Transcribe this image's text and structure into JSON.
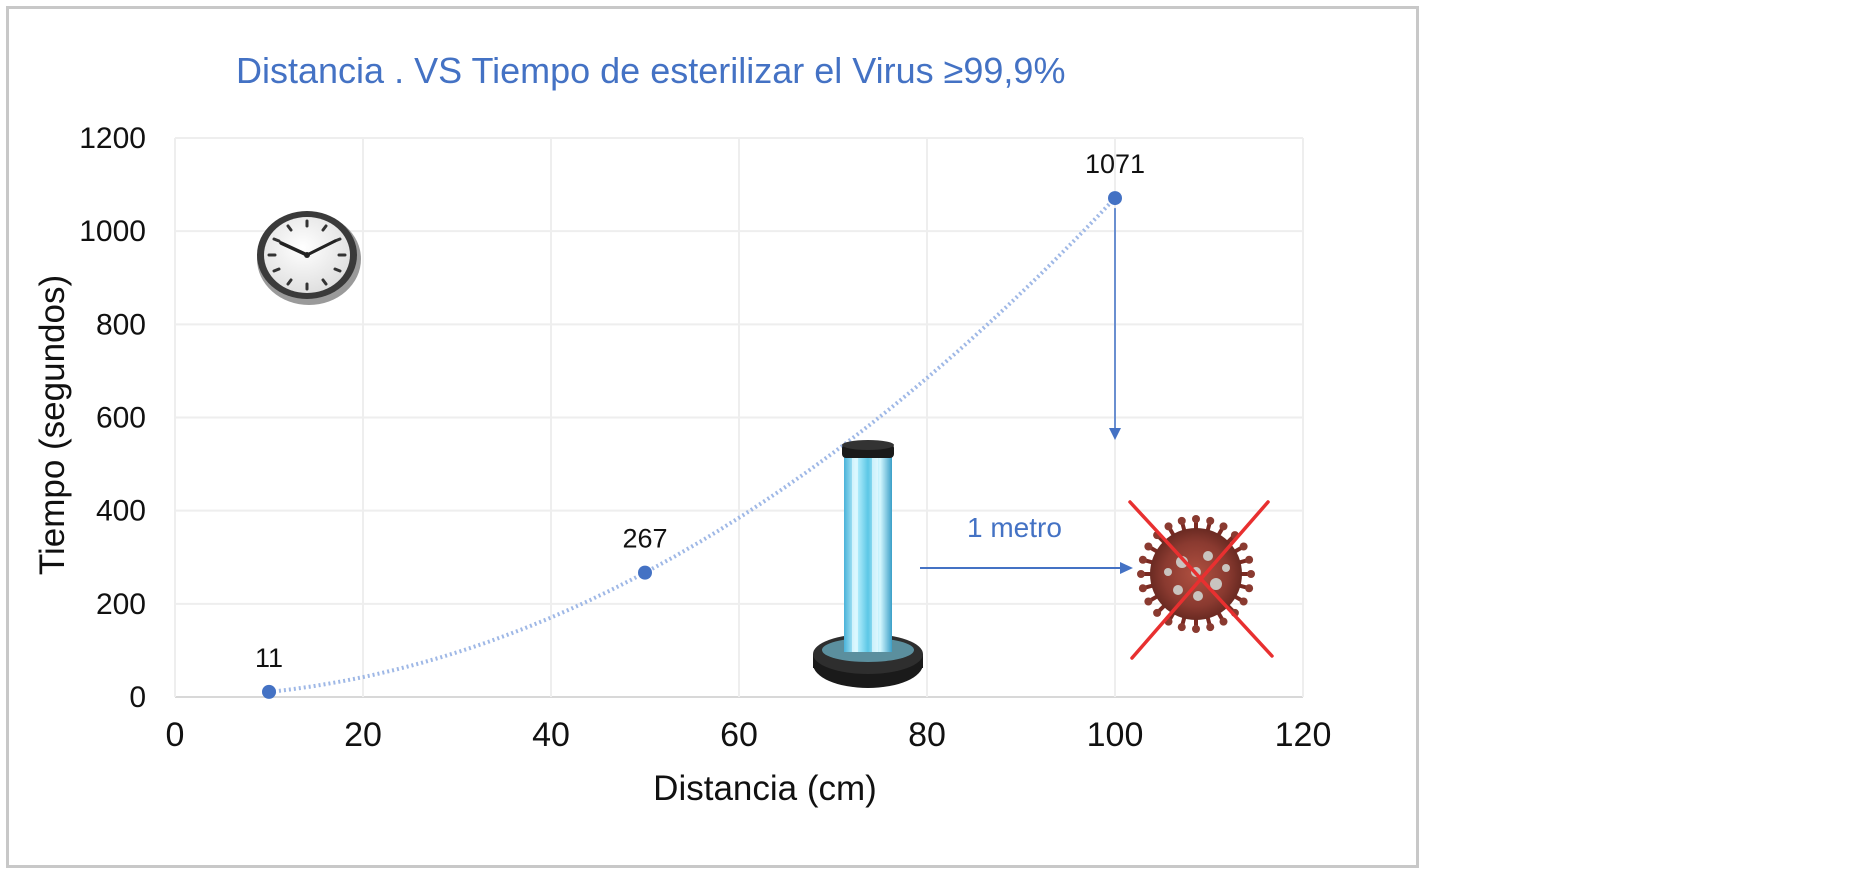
{
  "chart_data": {
    "type": "scatter",
    "title": "Distancia . VS Tiempo de esterilizar el Virus ≥99,9%",
    "xlabel": "Distancia (cm)",
    "ylabel": "Tiempo (segundos)",
    "xlim": [
      0,
      120
    ],
    "ylim": [
      0,
      1200
    ],
    "x_ticks": [
      0,
      20,
      40,
      60,
      80,
      100,
      120
    ],
    "y_ticks": [
      0,
      200,
      400,
      600,
      800,
      1000,
      1200
    ],
    "grid": true,
    "series": [
      {
        "x": [
          10,
          50,
          100
        ],
        "y": [
          11,
          267,
          1071
        ],
        "labels": [
          "11",
          "267",
          "1071"
        ],
        "color": "#4472c4",
        "line_style": "dotted-curve"
      }
    ],
    "annotations": [
      {
        "text": "1 metro",
        "color": "#4472c4"
      }
    ]
  },
  "colors": {
    "accent": "#4472c4",
    "grid": "#eeeeee",
    "cross": "#e83030"
  },
  "icons": [
    "clock-icon",
    "uv-lamp-icon",
    "virus-icon",
    "cross-icon"
  ]
}
